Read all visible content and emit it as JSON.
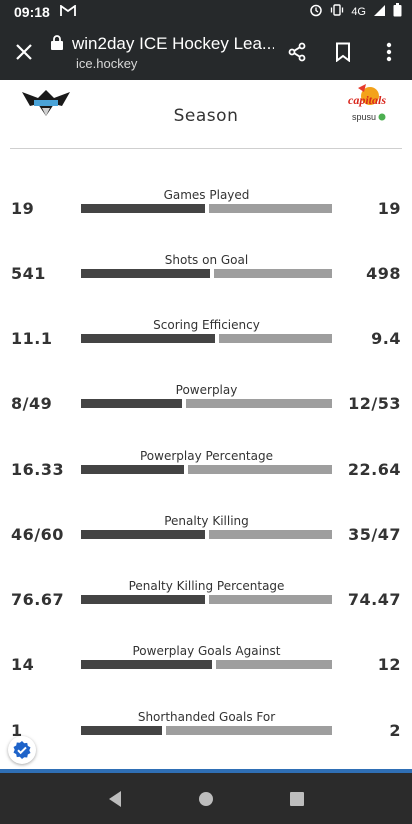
{
  "status_bar": {
    "time": "09:18",
    "notification_icon": "gmail-icon",
    "network": "4G"
  },
  "browser": {
    "title": "win2day ICE Hockey Lea...",
    "domain": "ice.hockey",
    "icons": [
      "close-icon",
      "lock-icon",
      "share-icon",
      "bookmark-icon",
      "more-icon"
    ]
  },
  "header": {
    "left_team_logo": "black-wings-logo",
    "right_team_logo": "vienna-capitals-logo",
    "right_logo_text": "capitals",
    "right_logo_sponsor": "spusu",
    "section_title": "Season"
  },
  "stats": [
    {
      "label": "Games Played",
      "left": "19",
      "right": "19",
      "left_share": 0.5
    },
    {
      "label": "Shots on Goal",
      "left": "541",
      "right": "498",
      "left_share": 0.52
    },
    {
      "label": "Scoring Efficiency",
      "left": "11.1",
      "right": "9.4",
      "left_share": 0.54
    },
    {
      "label": "Powerplay",
      "left": "8/49",
      "right": "12/53",
      "left_share": 0.41
    },
    {
      "label": "Powerplay Percentage",
      "left": "16.33",
      "right": "22.64",
      "left_share": 0.42
    },
    {
      "label": "Penalty Killing",
      "left": "46/60",
      "right": "35/47",
      "left_share": 0.5
    },
    {
      "label": "Penalty Killing Percentage",
      "left": "76.67",
      "right": "74.47",
      "left_share": 0.5
    },
    {
      "label": "Powerplay Goals Against",
      "left": "14",
      "right": "12",
      "left_share": 0.53
    },
    {
      "label": "Shorthanded Goals For",
      "left": "1",
      "right": "2",
      "left_share": 0.33
    }
  ],
  "colors": {
    "left_bar": "#444444",
    "right_bar": "#9e9e9e",
    "chrome": "#26292b",
    "accent": "#2f6fb5"
  },
  "nav": {
    "icons": [
      "back-icon",
      "home-icon",
      "recents-icon"
    ]
  }
}
